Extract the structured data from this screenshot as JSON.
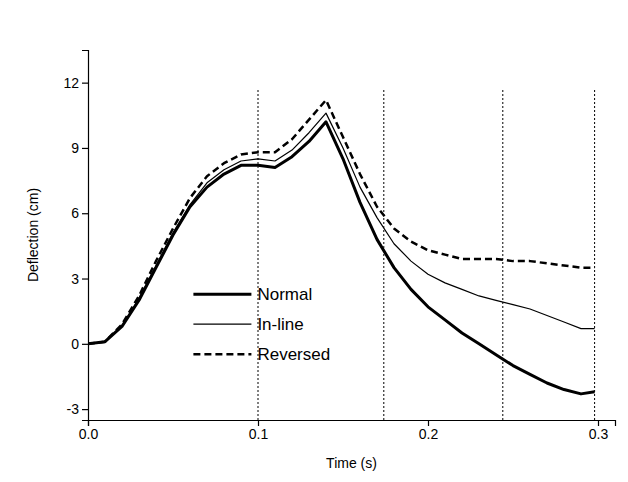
{
  "chart_data": {
    "type": "line",
    "x_label": "Time (s)",
    "y_label": "Deflection (cm)",
    "x": [
      0,
      0.01,
      0.02,
      0.03,
      0.04,
      0.05,
      0.06,
      0.07,
      0.08,
      0.09,
      0.1,
      0.11,
      0.12,
      0.13,
      0.14,
      0.15,
      0.16,
      0.17,
      0.18,
      0.19,
      0.2,
      0.21,
      0.22,
      0.23,
      0.24,
      0.25,
      0.26,
      0.27,
      0.28,
      0.29,
      0.298
    ],
    "series": [
      {
        "name": "Normal",
        "color": "#000000",
        "line_style": "solid",
        "values": [
          0,
          0.1,
          0.8,
          2.0,
          3.5,
          5.0,
          6.3,
          7.2,
          7.8,
          8.2,
          8.2,
          8.1,
          8.6,
          9.3,
          10.2,
          8.5,
          6.5,
          4.8,
          3.5,
          2.5,
          1.7,
          1.1,
          0.5,
          0.0,
          -0.5,
          -1.0,
          -1.4,
          -1.8,
          -2.1,
          -2.3,
          -2.2
        ]
      },
      {
        "name": "In-line",
        "color": "#000000",
        "line_style": "solid",
        "values": [
          0,
          0.1,
          0.8,
          2.1,
          3.6,
          5.1,
          6.4,
          7.4,
          8.0,
          8.4,
          8.5,
          8.4,
          8.9,
          9.7,
          10.6,
          9.0,
          7.2,
          5.8,
          4.6,
          3.8,
          3.2,
          2.8,
          2.5,
          2.2,
          2.0,
          1.8,
          1.6,
          1.3,
          1.0,
          0.7,
          0.7
        ]
      },
      {
        "name": "Reversed",
        "color": "#000000",
        "line_style": "dashed",
        "values": [
          0,
          0.1,
          0.9,
          2.2,
          3.8,
          5.3,
          6.7,
          7.7,
          8.3,
          8.7,
          8.8,
          8.8,
          9.4,
          10.3,
          11.2,
          9.5,
          7.8,
          6.3,
          5.3,
          4.7,
          4.3,
          4.1,
          3.9,
          3.9,
          3.9,
          3.8,
          3.8,
          3.7,
          3.6,
          3.5,
          3.5
        ]
      }
    ],
    "reference_lines": [
      0.1,
      0.174,
      0.244,
      0.298
    ],
    "xlim": [
      0,
      0.31
    ],
    "xticks": [
      {
        "value": 0,
        "label": "0.0"
      },
      0.1,
      0.2,
      0.3
    ],
    "ylim": [
      -3.5,
      13.5
    ],
    "yticks": [
      -3,
      0,
      3,
      6,
      9,
      12
    ],
    "legend": "bottom",
    "grid": false
  }
}
